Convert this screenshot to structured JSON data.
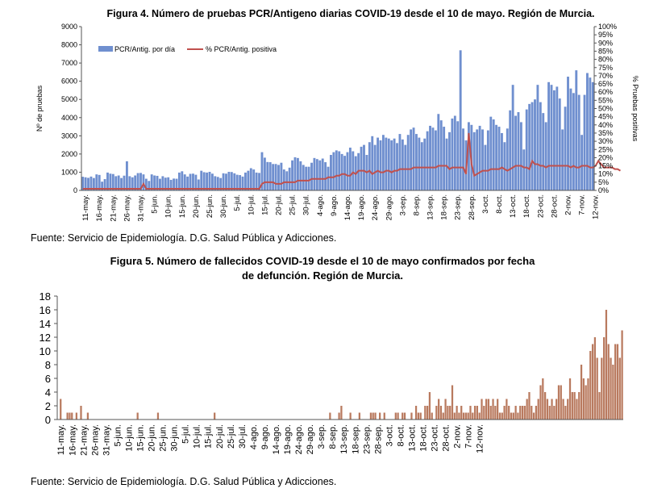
{
  "figure4": {
    "title": "Figura 4. Número de pruebas PCR/Antigeno diarias COVID-19 desde el 10 de mayo. Región de Murcia.",
    "source": "Fuente: Servicio de Epidemiología. D.G. Salud Pública y Adicciones."
  },
  "figure5": {
    "title_line1": "Figura 5. Número de fallecidos COVID-19 desde el 10 de mayo confirmados por fecha",
    "title_line2": "de defunción. Región de Murcia.",
    "source": "Fuente: Servicio de Epidemiología. D.G. Salud Pública y Adicciones."
  },
  "colors": {
    "bar4": "#6f8fcf",
    "line4": "#c0504d",
    "bar5": "#b97a5f"
  },
  "chart_data": [
    {
      "type": "bar",
      "title": "Figura 4. Número de pruebas PCR/Antigeno diarias COVID-19 desde el 10 de mayo. Región de Murcia.",
      "ylabel": "Nº de pruebas",
      "y2label": "% Pruebas positivas",
      "ylim": [
        0,
        9000
      ],
      "yticks": [
        "0",
        "1000",
        "2000",
        "3000",
        "4000",
        "5000",
        "6000",
        "7000",
        "8000",
        "9000"
      ],
      "y2lim": [
        0,
        100
      ],
      "y2ticks": [
        "0%",
        "5%",
        "10%",
        "15%",
        "20%",
        "25%",
        "30%",
        "35%",
        "40%",
        "45%",
        "50%",
        "55%",
        "60%",
        "65%",
        "70%",
        "75%",
        "80%",
        "85%",
        "90%",
        "95%",
        "100%"
      ],
      "xticks": [
        "11-may.",
        "16-may.",
        "21-may.",
        "26-may.",
        "31-may.",
        "5-jun.",
        "10-jun.",
        "15-jun.",
        "20-jun.",
        "25-jun.",
        "30-jun.",
        "5-jul.",
        "10-jul.",
        "15-jul.",
        "20-jul.",
        "25-jul.",
        "30-jul.",
        "4-ago.",
        "9-ago.",
        "14-ago.",
        "19-ago.",
        "24-ago.",
        "29-ago.",
        "3-sep.",
        "8-sep.",
        "13-sep.",
        "18-sep.",
        "23-sep.",
        "28-sep.",
        "3-oct.",
        "8-oct.",
        "13-oct.",
        "18-oct.",
        "23-oct.",
        "28-oct.",
        "2-nov.",
        "7-nov.",
        "12-nov."
      ],
      "grid": false,
      "legend_position": "top-left",
      "series": [
        {
          "name": "PCR/Antig. por día",
          "type": "bar",
          "axis": "left",
          "values": [
            750,
            720,
            690,
            760,
            680,
            880,
            850,
            480,
            620,
            980,
            920,
            900,
            780,
            820,
            680,
            810,
            1600,
            780,
            720,
            820,
            950,
            960,
            880,
            640,
            520,
            880,
            820,
            800,
            640,
            780,
            700,
            720,
            580,
            650,
            640,
            980,
            1050,
            880,
            760,
            910,
            920,
            860,
            600,
            1080,
            1000,
            980,
            1020,
            920,
            780,
            740,
            680,
            940,
            920,
            1020,
            1010,
            940,
            860,
            840,
            760,
            980,
            1080,
            1220,
            1150,
            980,
            960,
            2100,
            1800,
            1560,
            1550,
            1450,
            1450,
            1400,
            1520,
            1150,
            1050,
            1250,
            1650,
            1820,
            1780,
            1600,
            1400,
            1300,
            1300,
            1520,
            1780,
            1720,
            1650,
            1750,
            1550,
            1300,
            1950,
            2100,
            2200,
            2150,
            2000,
            1900,
            2100,
            2350,
            2150,
            1880,
            2050,
            2400,
            2500,
            1950,
            2650,
            2980,
            2500,
            2900,
            2750,
            3050,
            2900,
            2850,
            2750,
            2850,
            2600,
            3100,
            2800,
            2500,
            3050,
            3350,
            3450,
            3100,
            2900,
            2650,
            2850,
            3250,
            3550,
            3450,
            3300,
            4200,
            3850,
            3500,
            2850,
            3200,
            3950,
            4100,
            3800,
            7700,
            3400,
            2750,
            3750,
            3600,
            3200,
            3350,
            3550,
            3350,
            2500,
            3300,
            4050,
            3900,
            3600,
            3500,
            3150,
            2650,
            3400,
            4400,
            5800,
            4100,
            4300,
            3750,
            2250,
            4450,
            4750,
            4850,
            5000,
            5800,
            4850,
            4250,
            3750,
            5950,
            5800,
            5500,
            5700,
            5050,
            3350,
            4600,
            6250,
            5600,
            5350,
            6600,
            5250,
            3050,
            5250,
            6450,
            6200,
            5950
          ]
        },
        {
          "name": "% PCR/Antig. positiva",
          "type": "line",
          "axis": "right",
          "values": [
            1,
            1,
            1,
            1,
            1,
            1,
            1,
            1,
            1,
            1,
            1,
            1,
            1,
            1,
            1,
            1,
            1,
            1,
            1,
            1,
            1,
            1,
            4,
            1,
            1,
            1,
            1,
            1,
            1,
            1,
            1,
            1,
            1,
            1,
            1,
            1,
            1,
            1,
            1,
            1,
            1,
            1,
            1,
            1,
            1,
            1,
            1,
            1,
            1,
            1,
            1,
            1,
            1,
            1,
            1,
            1,
            1,
            1,
            1,
            1,
            1,
            1,
            1,
            1,
            1,
            4,
            5,
            5,
            5,
            5,
            4,
            4,
            4,
            5,
            5,
            5,
            5,
            5,
            6,
            6,
            6,
            6,
            6,
            7,
            7,
            7,
            7,
            7,
            7,
            8,
            8,
            8,
            9,
            9,
            10,
            10,
            9,
            9,
            11,
            10,
            12,
            12,
            12,
            11,
            12,
            10,
            11,
            12,
            11,
            11,
            12,
            12,
            11,
            12,
            12,
            13,
            13,
            13,
            13,
            13,
            14,
            14,
            14,
            14,
            14,
            14,
            14,
            14,
            14,
            15,
            15,
            15,
            15,
            13,
            14,
            14,
            14,
            14,
            14,
            10,
            35,
            16,
            9,
            10,
            11,
            12,
            12,
            12,
            13,
            13,
            13,
            13,
            14,
            13,
            12,
            13,
            14,
            15,
            15,
            15,
            14,
            14,
            13,
            18,
            16,
            16,
            15,
            15,
            14,
            15,
            15,
            15,
            15,
            15,
            15,
            15,
            15,
            14,
            15,
            14,
            14,
            15,
            15,
            15,
            14,
            14,
            15,
            18,
            16,
            14,
            14,
            14,
            14,
            13,
            13,
            12
          ]
        }
      ]
    },
    {
      "type": "bar",
      "title": "Figura 5. Número de fallecidos COVID-19 desde el 10 de mayo confirmados por fecha de defunción. Región de Murcia.",
      "xlabel": "",
      "ylabel": "",
      "ylim": [
        0,
        18
      ],
      "yticks": [
        "0",
        "2",
        "4",
        "6",
        "8",
        "10",
        "12",
        "14",
        "16",
        "18"
      ],
      "xticks": [
        "11-may.",
        "16-may.",
        "21-may.",
        "26-may.",
        "31-may.",
        "5-jun.",
        "10-jun.",
        "15-jun.",
        "20-jun.",
        "25-jun.",
        "30-jun.",
        "5-jul.",
        "10-jul.",
        "15-jul.",
        "20-jul.",
        "25-jul.",
        "30-jul.",
        "4-ago.",
        "9-ago.",
        "14-ago.",
        "19-ago.",
        "24-ago.",
        "29-ago.",
        "3-sep.",
        "8-sep.",
        "13-sep.",
        "18-sep.",
        "23-sep.",
        "28-sep.",
        "3-oct.",
        "8-oct.",
        "13-oct.",
        "18-oct.",
        "23-oct.",
        "28-oct.",
        "2-nov.",
        "7-nov.",
        "12-nov."
      ],
      "grid": false,
      "series": [
        {
          "name": "",
          "values": [
            0,
            3,
            0,
            0,
            1,
            1,
            1,
            0,
            1,
            0,
            2,
            0,
            0,
            1,
            0,
            0,
            0,
            0,
            0,
            0,
            0,
            0,
            0,
            0,
            0,
            0,
            0,
            0,
            0,
            0,
            0,
            0,
            0,
            0,
            0,
            1,
            0,
            0,
            0,
            0,
            0,
            0,
            0,
            0,
            1,
            0,
            0,
            0,
            0,
            0,
            0,
            0,
            0,
            0,
            0,
            0,
            0,
            0,
            0,
            0,
            0,
            0,
            0,
            0,
            0,
            0,
            0,
            0,
            0,
            1,
            0,
            0,
            0,
            0,
            0,
            0,
            0,
            0,
            0,
            0,
            0,
            0,
            0,
            0,
            0,
            0,
            0,
            0,
            0,
            0,
            0,
            0,
            0,
            0,
            0,
            0,
            0,
            0,
            0,
            0,
            0,
            0,
            0,
            0,
            0,
            0,
            0,
            0,
            0,
            0,
            0,
            0,
            0,
            0,
            0,
            0,
            0,
            0,
            0,
            0,
            1,
            0,
            0,
            0,
            1,
            2,
            0,
            0,
            0,
            1,
            0,
            0,
            0,
            1,
            0,
            0,
            0,
            0,
            1,
            1,
            1,
            0,
            1,
            0,
            1,
            0,
            0,
            0,
            0,
            1,
            1,
            0,
            1,
            1,
            0,
            0,
            1,
            0,
            2,
            1,
            1,
            0,
            2,
            2,
            4,
            1,
            0,
            2,
            3,
            2,
            1,
            3,
            2,
            2,
            5,
            1,
            2,
            1,
            2,
            1,
            1,
            1,
            2,
            1,
            2,
            2,
            1,
            3,
            2,
            3,
            3,
            2,
            3,
            2,
            3,
            1,
            1,
            2,
            3,
            2,
            1,
            1,
            2,
            1,
            2,
            2,
            2,
            3,
            4,
            2,
            1,
            2,
            3,
            5,
            6,
            4,
            3,
            2,
            3,
            2,
            3,
            5,
            5,
            3,
            2,
            3,
            6,
            4,
            4,
            3,
            4,
            8,
            6,
            5,
            6,
            10,
            11,
            12,
            9,
            4,
            9,
            12,
            16,
            11,
            9,
            8,
            11,
            11,
            9,
            13
          ]
        }
      ]
    }
  ]
}
